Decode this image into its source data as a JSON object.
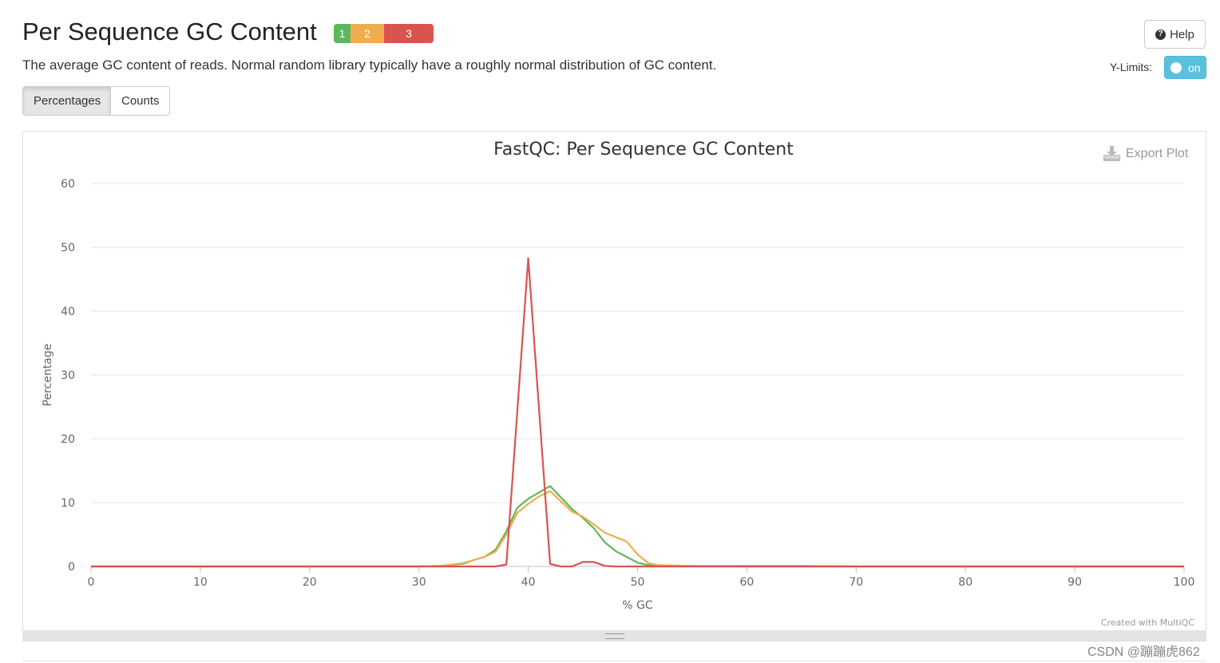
{
  "header": {
    "title": "Per Sequence GC Content",
    "status_badges": [
      {
        "label": "1",
        "status": "pass",
        "color": "#5cb85c"
      },
      {
        "label": "2",
        "status": "warn",
        "color": "#f0ad4e"
      },
      {
        "label": "3",
        "status": "fail",
        "color": "#d9534f"
      }
    ],
    "help_label": "Help",
    "help_icon": "question-circle-icon"
  },
  "description": "The average GC content of reads. Normal random library typically have a roughly normal distribution of GC content.",
  "ylimits": {
    "label": "Y-Limits:",
    "toggle_state": "on"
  },
  "view_buttons": {
    "percentages": "Percentages",
    "counts": "Counts",
    "active": "Percentages"
  },
  "export_label": "Export Plot",
  "credit": "Created with MultiQC",
  "watermark": "CSDN @蹦蹦虎862",
  "chart_data": {
    "type": "line",
    "title": "FastQC: Per Sequence GC Content",
    "xlabel": "% GC",
    "ylabel": "Percentage",
    "xlim": [
      0,
      100
    ],
    "ylim": [
      0,
      60
    ],
    "xticks": [
      0,
      10,
      20,
      30,
      40,
      50,
      60,
      70,
      80,
      90,
      100
    ],
    "yticks": [
      0,
      10,
      20,
      30,
      40,
      50,
      60
    ],
    "grid": true,
    "legend": "none",
    "series": [
      {
        "color": "#5cb85c",
        "points": [
          [
            0,
            0
          ],
          [
            30,
            0
          ],
          [
            32,
            0.1
          ],
          [
            34,
            0.4
          ],
          [
            35,
            1.0
          ],
          [
            36,
            1.5
          ],
          [
            37,
            2.6
          ],
          [
            38,
            5.5
          ],
          [
            39,
            9.2
          ],
          [
            40,
            10.6
          ],
          [
            41,
            11.6
          ],
          [
            42,
            12.6
          ],
          [
            43,
            10.8
          ],
          [
            44,
            9.0
          ],
          [
            45,
            7.6
          ],
          [
            46,
            6.0
          ],
          [
            47,
            3.8
          ],
          [
            48,
            2.4
          ],
          [
            49,
            1.5
          ],
          [
            50,
            0.6
          ],
          [
            51,
            0.2
          ],
          [
            52,
            0.1
          ],
          [
            60,
            0
          ],
          [
            100,
            0
          ]
        ]
      },
      {
        "color": "#f0ad4e",
        "points": [
          [
            0,
            0
          ],
          [
            30,
            0
          ],
          [
            32,
            0.1
          ],
          [
            34,
            0.5
          ],
          [
            35,
            1.0
          ],
          [
            36,
            1.5
          ],
          [
            37,
            2.3
          ],
          [
            38,
            5.0
          ],
          [
            39,
            8.4
          ],
          [
            40,
            9.8
          ],
          [
            41,
            11.0
          ],
          [
            42,
            11.8
          ],
          [
            43,
            10.2
          ],
          [
            44,
            8.6
          ],
          [
            45,
            7.8
          ],
          [
            46,
            6.6
          ],
          [
            47,
            5.3
          ],
          [
            48,
            4.6
          ],
          [
            49,
            3.9
          ],
          [
            50,
            1.9
          ],
          [
            51,
            0.5
          ],
          [
            52,
            0.2
          ],
          [
            55,
            0.1
          ],
          [
            65,
            0.1
          ],
          [
            70,
            0
          ],
          [
            100,
            0
          ]
        ]
      },
      {
        "color": "#d9534f",
        "points": [
          [
            0,
            0
          ],
          [
            37,
            0
          ],
          [
            38,
            0.3
          ],
          [
            40,
            48.3
          ],
          [
            42,
            0.4
          ],
          [
            43,
            0
          ],
          [
            44,
            0
          ],
          [
            45,
            0.7
          ],
          [
            46,
            0.7
          ],
          [
            47,
            0.1
          ],
          [
            48,
            0
          ],
          [
            100,
            0
          ]
        ]
      }
    ]
  }
}
